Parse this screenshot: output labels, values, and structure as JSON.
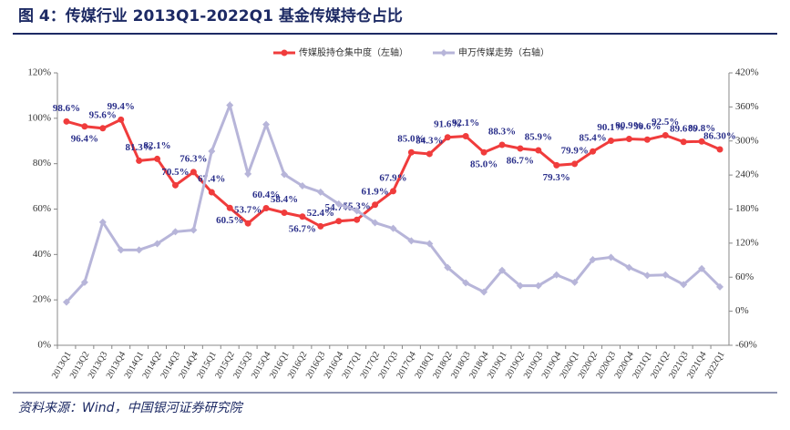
{
  "chart_data": {
    "type": "line",
    "title": "图 4：传媒行业 2013Q1-2022Q1 基金传媒持仓占比",
    "source": "资料来源：Wind，中国银河证券研究院",
    "categories": [
      "2013Q1",
      "2013Q2",
      "2013Q3",
      "2013Q4",
      "2014Q1",
      "2014Q2",
      "2014Q3",
      "2014Q4",
      "2015Q1",
      "2015Q2",
      "2015Q3",
      "2015Q4",
      "2016Q1",
      "2016Q2",
      "2016Q3",
      "2016Q4",
      "2017Q1",
      "2017Q2",
      "2017Q3",
      "2017Q4",
      "2018Q1",
      "2018Q2",
      "2018Q3",
      "2018Q4",
      "2019Q1",
      "2019Q2",
      "2019Q3",
      "2019Q4",
      "2020Q1",
      "2020Q2",
      "2020Q3",
      "2020Q4",
      "2021Q1",
      "2021Q2",
      "2021Q3",
      "2021Q4",
      "2022Q1"
    ],
    "series": [
      {
        "name": "传媒股持仓集中度（左轴）",
        "color": "#f03c3c",
        "axis": "y",
        "values": [
          98.6,
          96.4,
          95.6,
          99.4,
          81.3,
          82.1,
          70.5,
          76.3,
          67.4,
          60.5,
          53.7,
          60.4,
          58.4,
          56.7,
          52.4,
          54.7,
          55.3,
          61.9,
          67.9,
          85.0,
          84.3,
          91.6,
          92.1,
          85.0,
          88.3,
          86.7,
          85.9,
          79.3,
          79.9,
          85.4,
          90.1,
          90.9,
          90.6,
          92.5,
          89.6,
          89.8,
          86.3
        ],
        "value_labels": [
          "98.6%",
          "96.4%",
          "95.6%",
          "99.4%",
          "81.3%",
          "82.1%",
          "70.5%",
          "76.3%",
          "67.4%",
          "60.5%",
          "53.7%",
          "60.4%",
          "58.4%",
          "56.7%",
          "52.4%",
          "54.7%",
          "55.3%",
          "61.9%",
          "67.9%",
          "85.0%",
          "84.3%",
          "91.6%",
          "92.1%",
          "85.0%",
          "88.3%",
          "86.7%",
          "85.9%",
          "79.3%",
          "79.9%",
          "85.4%",
          "90.1%",
          "90.9%",
          "90.6%",
          "92.5%",
          "89.6%",
          "89.8%",
          "86.30%"
        ]
      },
      {
        "name": "申万传媒走势（右轴）",
        "color": "#b7b5d9",
        "axis": "y2",
        "values": [
          16,
          51,
          157,
          108,
          108,
          119,
          140,
          143,
          282,
          363,
          242,
          329,
          241,
          221,
          210,
          189,
          177,
          156,
          146,
          124,
          119,
          77,
          50,
          34,
          72,
          45,
          45,
          64,
          51,
          91,
          95,
          77,
          63,
          64,
          47,
          75,
          43
        ]
      }
    ],
    "ylim": [
      0,
      120
    ],
    "yticks": [
      {
        "value": 0,
        "label": "0%"
      },
      {
        "value": 20,
        "label": "20%"
      },
      {
        "value": 40,
        "label": "40%"
      },
      {
        "value": 60,
        "label": "60%"
      },
      {
        "value": 80,
        "label": "80%"
      },
      {
        "value": 100,
        "label": "100%"
      },
      {
        "value": 120,
        "label": "120%"
      }
    ],
    "y2lim": [
      -60,
      420
    ],
    "y2ticks": [
      {
        "value": -60,
        "label": "-60%"
      },
      {
        "value": 0,
        "label": "0%"
      },
      {
        "value": 60,
        "label": "60%"
      },
      {
        "value": 120,
        "label": "120%"
      },
      {
        "value": 180,
        "label": "180%"
      },
      {
        "value": 240,
        "label": "240%"
      },
      {
        "value": 300,
        "label": "300%"
      },
      {
        "value": 360,
        "label": "360%"
      },
      {
        "value": 420,
        "label": "420%"
      }
    ],
    "legend": "top"
  }
}
